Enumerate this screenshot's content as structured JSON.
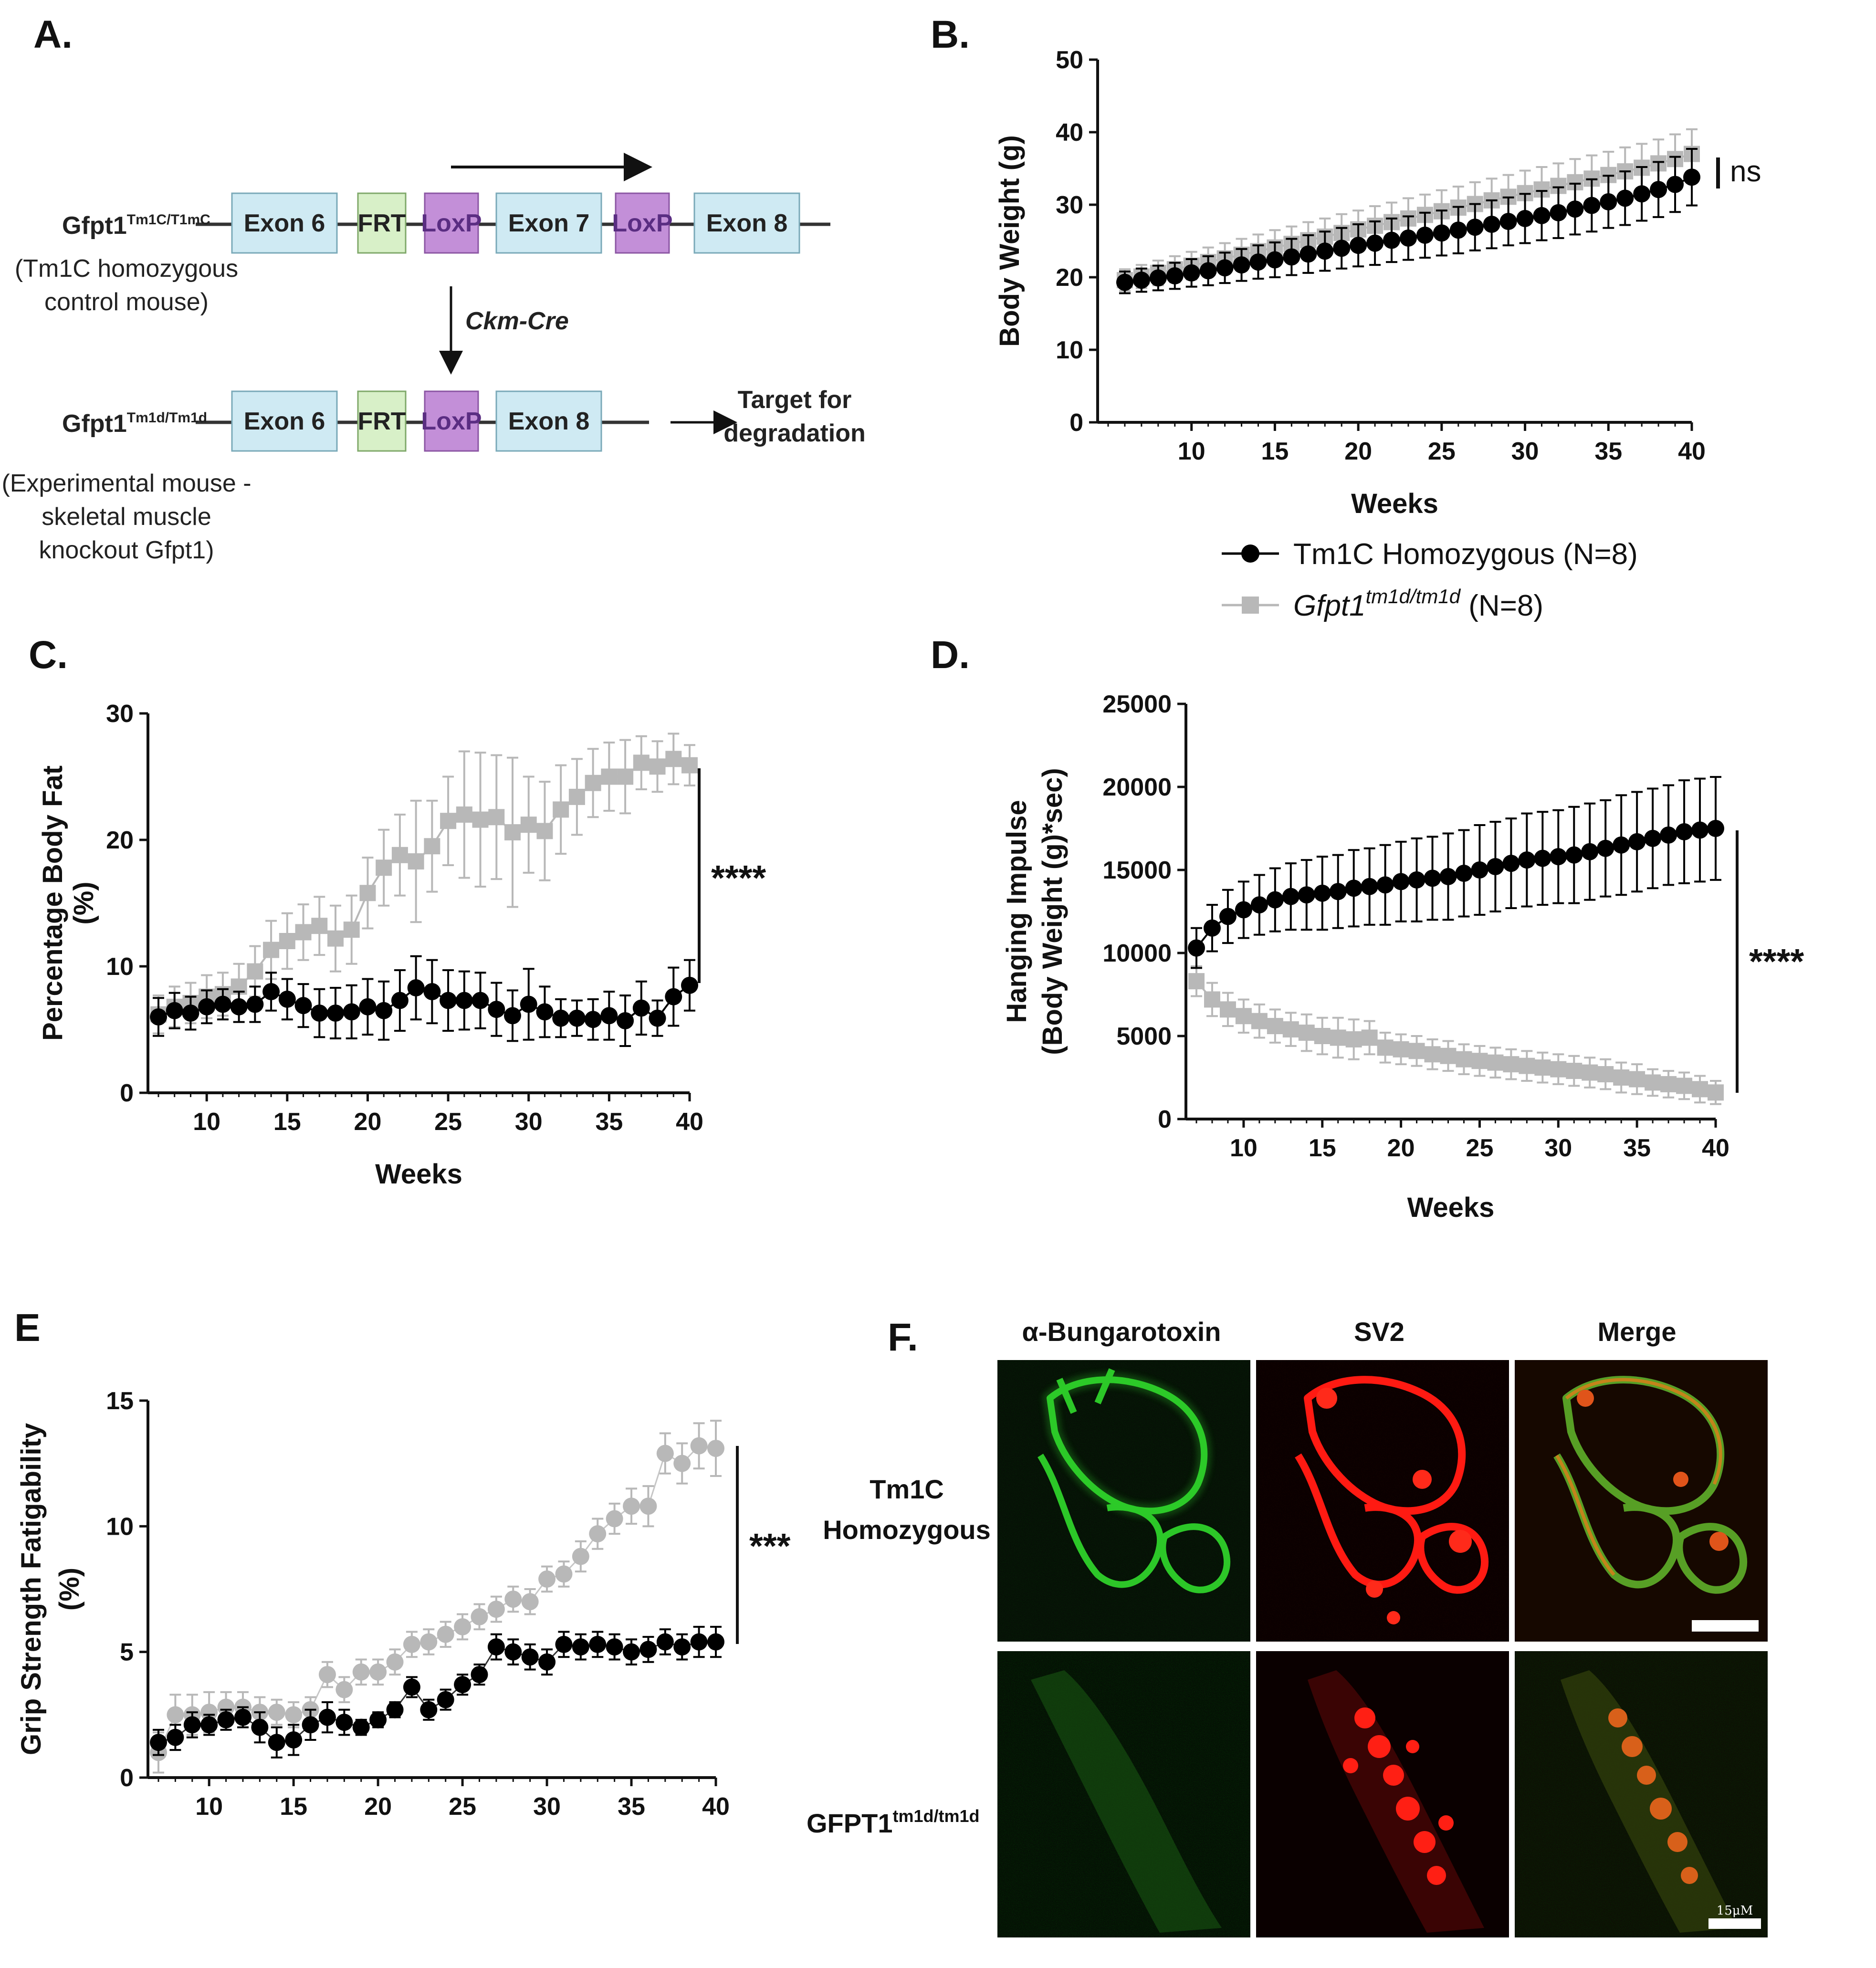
{
  "panel_letters": {
    "a": "A.",
    "b": "B.",
    "c": "C.",
    "d": "D.",
    "e": "E",
    "f": "F."
  },
  "diagram": {
    "top_mouse": {
      "name": "Gfpt1",
      "sup": "Tm1C/T1mC",
      "desc1": "(Tm1C homozygous",
      "desc2": "control mouse)"
    },
    "top_boxes": [
      "Exon 6",
      "FRT",
      "LoxP",
      "Exon 7",
      "LoxP",
      "Exon 8"
    ],
    "cre_label": "Ckm-Cre",
    "bottom_mouse": {
      "name": "Gfpt1",
      "sup": "Tm1d/Tm1d",
      "desc1": "(Experimental mouse -",
      "desc2": "skeletal muscle",
      "desc3": "knockout Gfpt1)"
    },
    "bottom_boxes": [
      "Exon 6",
      "FRT",
      "LoxP",
      "Exon 8"
    ],
    "target1": "Target for",
    "target2": "degradation",
    "colors": {
      "exon": "#cfeaf3",
      "frt": "#d8f0c8",
      "loxp": "#c38fd8",
      "loxp_text": "#5a2d82"
    }
  },
  "legend": {
    "control": "Tm1C Homozygous (N=8)",
    "ko_italic": "Gfpt1",
    "ko_sup": "tm1d/tm1d",
    "ko_suffix": " (N=8)"
  },
  "chart_data": [
    {
      "id": "B",
      "type": "line",
      "title": "",
      "xlabel": "Weeks",
      "ylabel": "Body Weight (g)",
      "xlim": [
        5,
        40
      ],
      "ylim": [
        0,
        50
      ],
      "xticks": [
        10,
        15,
        20,
        25,
        30,
        35,
        40
      ],
      "yticks": [
        0,
        10,
        20,
        30,
        40,
        50
      ],
      "significance": "ns",
      "series": [
        {
          "name": "Tm1C Homozygous (N=8)",
          "color": "#000000",
          "marker": "circle",
          "x": [
            6,
            7,
            8,
            9,
            10,
            11,
            12,
            13,
            14,
            15,
            16,
            17,
            18,
            19,
            20,
            21,
            22,
            23,
            24,
            25,
            26,
            27,
            28,
            29,
            30,
            31,
            32,
            33,
            34,
            35,
            36,
            37,
            38,
            39,
            40
          ],
          "y": [
            19.3,
            19.6,
            19.9,
            20.2,
            20.6,
            20.9,
            21.3,
            21.7,
            22.1,
            22.4,
            22.8,
            23.2,
            23.6,
            24.0,
            24.4,
            24.7,
            25.1,
            25.4,
            25.8,
            26.1,
            26.5,
            26.9,
            27.3,
            27.7,
            28.1,
            28.5,
            28.9,
            29.4,
            29.9,
            30.4,
            30.9,
            31.5,
            32.1,
            32.8,
            33.8
          ],
          "err": [
            1.5,
            1.6,
            1.7,
            1.8,
            1.9,
            2.0,
            2.1,
            2.2,
            2.3,
            2.4,
            2.5,
            2.6,
            2.7,
            2.8,
            2.9,
            3.0,
            3.0,
            3.0,
            3.1,
            3.1,
            3.2,
            3.2,
            3.3,
            3.3,
            3.4,
            3.4,
            3.5,
            3.5,
            3.6,
            3.6,
            3.7,
            3.7,
            3.8,
            3.8,
            3.9
          ]
        },
        {
          "name": "Gfpt1 tm1d/tm1d (N=8)",
          "color": "#b8b8b8",
          "marker": "square",
          "x": [
            6,
            7,
            8,
            9,
            10,
            11,
            12,
            13,
            14,
            15,
            16,
            17,
            18,
            19,
            20,
            21,
            22,
            23,
            24,
            25,
            26,
            27,
            28,
            29,
            30,
            31,
            32,
            33,
            34,
            35,
            36,
            37,
            38,
            39,
            40
          ],
          "y": [
            19.6,
            20.1,
            20.6,
            21.1,
            21.6,
            22.1,
            22.6,
            23.1,
            23.6,
            24.1,
            24.6,
            25.1,
            25.6,
            26.1,
            26.6,
            27.1,
            27.6,
            28.1,
            28.6,
            29.1,
            29.6,
            30.1,
            30.6,
            31.1,
            31.6,
            32.1,
            32.6,
            33.1,
            33.6,
            34.1,
            34.6,
            35.1,
            35.7,
            36.3,
            37.0
          ],
          "err": [
            1.5,
            1.6,
            1.7,
            1.8,
            1.9,
            2.0,
            2.1,
            2.2,
            2.3,
            2.4,
            2.4,
            2.5,
            2.5,
            2.6,
            2.6,
            2.7,
            2.7,
            2.8,
            2.8,
            2.9,
            2.9,
            3.0,
            3.0,
            3.0,
            3.1,
            3.1,
            3.1,
            3.2,
            3.2,
            3.2,
            3.3,
            3.3,
            3.3,
            3.4,
            3.4
          ]
        }
      ]
    },
    {
      "id": "C",
      "type": "line",
      "title": "",
      "xlabel": "Weeks",
      "ylabel": "Percentage Body Fat",
      "ylabel2": "(%)",
      "xlim": [
        7,
        40
      ],
      "ylim": [
        0,
        30
      ],
      "xticks": [
        10,
        15,
        20,
        25,
        30,
        35,
        40
      ],
      "yticks": [
        0,
        10,
        20,
        30
      ],
      "significance": "****",
      "series": [
        {
          "name": "Tm1C Homozygous (N=8)",
          "color": "#000000",
          "marker": "circle",
          "x": [
            7,
            8,
            9,
            10,
            11,
            12,
            13,
            14,
            15,
            16,
            17,
            18,
            19,
            20,
            21,
            22,
            23,
            24,
            25,
            26,
            27,
            28,
            29,
            30,
            31,
            32,
            33,
            34,
            35,
            36,
            37,
            38,
            39,
            40
          ],
          "y": [
            6.0,
            6.5,
            6.3,
            6.8,
            7.0,
            6.8,
            7.0,
            8.0,
            7.4,
            6.9,
            6.3,
            6.3,
            6.4,
            6.8,
            6.5,
            7.3,
            8.3,
            8.0,
            7.3,
            7.3,
            7.3,
            6.6,
            6.1,
            7.0,
            6.4,
            5.9,
            5.9,
            5.8,
            6.1,
            5.7,
            6.7,
            5.9,
            7.6,
            8.5
          ],
          "err": [
            1.5,
            1.4,
            1.3,
            1.3,
            1.2,
            1.2,
            1.4,
            1.5,
            1.6,
            1.7,
            1.9,
            2.0,
            2.1,
            2.2,
            2.3,
            2.4,
            2.5,
            2.5,
            2.4,
            2.3,
            2.2,
            2.1,
            2.0,
            2.8,
            2.0,
            1.5,
            1.4,
            1.6,
            1.9,
            2.0,
            2.1,
            1.4,
            2.3,
            2.0
          ]
        },
        {
          "name": "Gfpt1 tm1d/tm1d (N=8)",
          "color": "#b8b8b8",
          "marker": "square",
          "x": [
            7,
            8,
            9,
            10,
            11,
            12,
            13,
            14,
            15,
            16,
            17,
            18,
            19,
            20,
            21,
            22,
            23,
            24,
            25,
            26,
            27,
            28,
            29,
            30,
            31,
            32,
            33,
            34,
            35,
            36,
            37,
            38,
            39,
            40
          ],
          "y": [
            6.2,
            6.8,
            7.1,
            7.6,
            7.8,
            8.4,
            9.6,
            11.3,
            12.0,
            12.7,
            13.2,
            12.2,
            12.9,
            15.8,
            17.8,
            18.8,
            18.3,
            19.5,
            21.5,
            22.0,
            21.6,
            21.8,
            20.6,
            21.2,
            20.7,
            22.4,
            23.4,
            24.5,
            25.0,
            25.0,
            26.1,
            25.8,
            26.4,
            25.9
          ],
          "err": [
            1.5,
            1.6,
            1.6,
            1.7,
            1.7,
            1.8,
            2.0,
            2.3,
            2.2,
            2.2,
            2.3,
            2.6,
            2.7,
            2.8,
            3.0,
            3.2,
            4.8,
            3.6,
            3.5,
            5.0,
            5.3,
            4.9,
            5.9,
            3.8,
            3.9,
            3.5,
            3.0,
            2.7,
            2.7,
            2.9,
            2.1,
            2.0,
            2.0,
            1.6
          ]
        }
      ]
    },
    {
      "id": "D",
      "type": "line",
      "title": "",
      "xlabel": "Weeks",
      "ylabel": "Hanging Impulse",
      "ylabel2": "(Body Weight  (g)*sec)",
      "xlim": [
        7,
        40
      ],
      "ylim": [
        0,
        25000
      ],
      "xticks": [
        10,
        15,
        20,
        25,
        30,
        35,
        40
      ],
      "yticks": [
        0,
        5000,
        10000,
        15000,
        20000,
        25000
      ],
      "significance": "****",
      "series": [
        {
          "name": "Tm1C Homozygous (N=8)",
          "color": "#000000",
          "marker": "circle",
          "x": [
            7,
            8,
            9,
            10,
            11,
            12,
            13,
            14,
            15,
            16,
            17,
            18,
            19,
            20,
            21,
            22,
            23,
            24,
            25,
            26,
            27,
            28,
            29,
            30,
            31,
            32,
            33,
            34,
            35,
            36,
            37,
            38,
            39,
            40
          ],
          "y": [
            10300,
            11500,
            12200,
            12600,
            12900,
            13200,
            13400,
            13500,
            13600,
            13700,
            13900,
            14000,
            14100,
            14300,
            14400,
            14500,
            14600,
            14800,
            15000,
            15200,
            15400,
            15600,
            15700,
            15800,
            15900,
            16100,
            16300,
            16500,
            16700,
            16900,
            17100,
            17300,
            17400,
            17500
          ],
          "err": [
            1200,
            1400,
            1600,
            1700,
            1800,
            1900,
            2000,
            2100,
            2200,
            2200,
            2300,
            2300,
            2400,
            2400,
            2500,
            2500,
            2600,
            2600,
            2700,
            2700,
            2700,
            2800,
            2800,
            2800,
            2900,
            2900,
            2900,
            3000,
            3000,
            3000,
            3000,
            3100,
            3100,
            3100
          ]
        },
        {
          "name": "Gfpt1 tm1d/tm1d (N=8)",
          "color": "#b8b8b8",
          "marker": "square",
          "x": [
            7,
            8,
            9,
            10,
            11,
            12,
            13,
            14,
            15,
            16,
            17,
            18,
            19,
            20,
            21,
            22,
            23,
            24,
            25,
            26,
            27,
            28,
            29,
            30,
            31,
            32,
            33,
            34,
            35,
            36,
            37,
            38,
            39,
            40
          ],
          "y": [
            8300,
            7200,
            6600,
            6200,
            5900,
            5600,
            5400,
            5200,
            5000,
            4900,
            4800,
            4900,
            4300,
            4200,
            4100,
            3900,
            3800,
            3600,
            3500,
            3400,
            3300,
            3200,
            3100,
            3000,
            2900,
            2800,
            2700,
            2500,
            2400,
            2200,
            2100,
            2000,
            1800,
            1600
          ],
          "err": [
            900,
            1000,
            1000,
            1000,
            1000,
            1000,
            1000,
            1100,
            1100,
            1200,
            1200,
            1000,
            900,
            900,
            900,
            900,
            900,
            900,
            900,
            900,
            900,
            900,
            900,
            900,
            900,
            900,
            900,
            900,
            900,
            800,
            800,
            800,
            800,
            700
          ]
        }
      ]
    },
    {
      "id": "E",
      "type": "scatter",
      "title": "",
      "xlabel": "",
      "ylabel": "Grip Strength Fatigability",
      "ylabel2": "(%)",
      "xlim": [
        7,
        40
      ],
      "ylim": [
        0,
        15
      ],
      "xticks": [
        10,
        15,
        20,
        25,
        30,
        35,
        40
      ],
      "yticks": [
        0,
        5,
        10,
        15
      ],
      "significance": "***",
      "series": [
        {
          "name": "Tm1C Homozygous (N=8)",
          "color": "#000000",
          "marker": "circle",
          "x": [
            7,
            8,
            9,
            10,
            11,
            12,
            13,
            14,
            15,
            16,
            17,
            18,
            19,
            20,
            21,
            22,
            23,
            24,
            25,
            26,
            27,
            28,
            29,
            30,
            31,
            32,
            33,
            34,
            35,
            36,
            37,
            38,
            39,
            40
          ],
          "y": [
            1.4,
            1.6,
            2.1,
            2.1,
            2.3,
            2.4,
            2.0,
            1.4,
            1.5,
            2.1,
            2.4,
            2.2,
            2.0,
            2.3,
            2.7,
            3.6,
            2.7,
            3.1,
            3.7,
            4.1,
            5.2,
            5.0,
            4.8,
            4.6,
            5.3,
            5.2,
            5.3,
            5.2,
            5.0,
            5.1,
            5.4,
            5.2,
            5.4,
            5.4
          ],
          "err": [
            0.5,
            0.5,
            0.5,
            0.4,
            0.4,
            0.4,
            0.6,
            0.6,
            0.6,
            0.6,
            0.6,
            0.5,
            0.3,
            0.3,
            0.3,
            0.4,
            0.4,
            0.4,
            0.4,
            0.4,
            0.5,
            0.5,
            0.5,
            0.5,
            0.5,
            0.5,
            0.5,
            0.5,
            0.5,
            0.5,
            0.5,
            0.5,
            0.6,
            0.6
          ]
        },
        {
          "name": "Gfpt1 tm1d/tm1d (N=8)",
          "color": "#b8b8b8",
          "marker": "circle",
          "x": [
            7,
            8,
            9,
            10,
            11,
            12,
            13,
            14,
            15,
            16,
            17,
            18,
            19,
            20,
            21,
            22,
            23,
            24,
            25,
            26,
            27,
            28,
            29,
            30,
            31,
            32,
            33,
            34,
            35,
            36,
            37,
            38,
            39,
            40
          ],
          "y": [
            1.0,
            2.5,
            2.5,
            2.6,
            2.8,
            2.8,
            2.6,
            2.6,
            2.5,
            2.7,
            4.1,
            3.5,
            4.2,
            4.2,
            4.6,
            5.3,
            5.4,
            5.7,
            6.0,
            6.4,
            6.7,
            7.1,
            7.0,
            7.9,
            8.1,
            8.8,
            9.7,
            10.3,
            10.8,
            10.8,
            12.9,
            12.5,
            13.2,
            13.1
          ],
          "err": [
            0.8,
            0.8,
            0.8,
            0.8,
            0.6,
            0.6,
            0.6,
            0.5,
            0.5,
            0.5,
            0.5,
            0.5,
            0.5,
            0.5,
            0.5,
            0.5,
            0.5,
            0.5,
            0.5,
            0.5,
            0.5,
            0.5,
            0.5,
            0.5,
            0.5,
            0.6,
            0.6,
            0.6,
            0.7,
            0.8,
            0.8,
            0.8,
            0.9,
            1.1
          ]
        }
      ]
    }
  ],
  "imaging": {
    "columns": [
      "α-Bungarotoxin",
      "SV2",
      "Merge"
    ],
    "row1": {
      "l1": "Tm1C",
      "l2": "Homozygous"
    },
    "row2": {
      "name": "GFPT1",
      "sup": "tm1d/tm1d"
    },
    "scale": "15μM"
  }
}
